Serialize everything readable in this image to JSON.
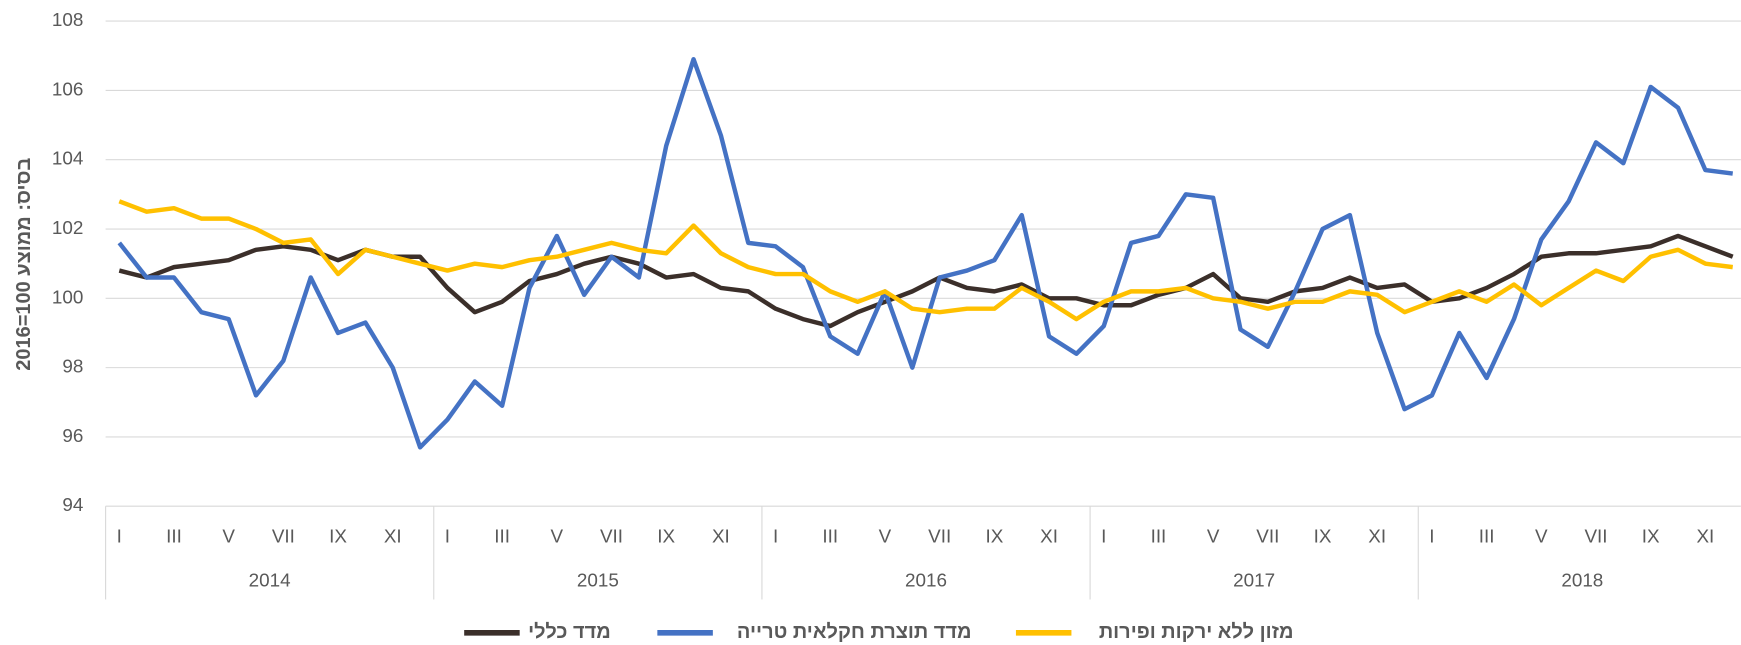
{
  "chart_data": {
    "type": "line",
    "y_label": "בסיס: ממוצע 100=2016",
    "categories": [
      "I",
      null,
      "III",
      null,
      "V",
      null,
      "VII",
      null,
      "IX",
      null,
      "XI",
      null,
      "I",
      null,
      "III",
      null,
      "V",
      null,
      "VII",
      null,
      "IX",
      null,
      "XI",
      null,
      "I",
      null,
      "III",
      null,
      "V",
      null,
      "VII",
      null,
      "IX",
      null,
      "XI",
      null,
      "I",
      null,
      "III",
      null,
      "V",
      null,
      "VII",
      null,
      "IX",
      null,
      "XI",
      null,
      "I",
      null,
      "III",
      null,
      "V",
      null,
      "VII",
      null,
      "IX",
      null,
      "XI",
      null
    ],
    "groups": [
      "2014",
      "2015",
      "2016",
      "2017",
      "2018"
    ],
    "series": [
      {
        "name": "מדד כללי",
        "color": "#3b2f2a",
        "values": [
          100.8,
          100.6,
          100.9,
          101.0,
          101.1,
          101.4,
          101.5,
          101.4,
          101.1,
          101.4,
          101.2,
          101.2,
          100.3,
          99.6,
          99.9,
          100.5,
          100.7,
          101.0,
          101.2,
          101.0,
          100.6,
          100.7,
          100.3,
          100.2,
          99.7,
          99.4,
          99.2,
          99.6,
          99.9,
          100.2,
          100.6,
          100.3,
          100.2,
          100.4,
          100.0,
          100.0,
          99.8,
          99.8,
          100.1,
          100.3,
          100.7,
          100.0,
          99.9,
          100.2,
          100.3,
          100.6,
          100.3,
          100.4,
          99.9,
          100.0,
          100.3,
          100.7,
          101.2,
          101.3,
          101.3,
          101.4,
          101.5,
          101.8,
          101.5,
          101.2
        ]
      },
      {
        "name": "מדד תוצרת חקלאית טרייה",
        "color": "#4472c4",
        "values": [
          101.6,
          100.6,
          100.6,
          99.6,
          99.4,
          97.2,
          98.2,
          100.6,
          99.0,
          99.3,
          98.0,
          95.7,
          96.5,
          97.6,
          96.9,
          100.3,
          101.8,
          100.1,
          101.2,
          100.6,
          104.4,
          106.9,
          104.7,
          101.6,
          101.5,
          100.9,
          98.9,
          98.4,
          100.2,
          98.0,
          100.6,
          100.8,
          101.1,
          102.4,
          98.9,
          98.4,
          99.2,
          101.6,
          101.8,
          103.0,
          102.9,
          99.1,
          98.6,
          100.2,
          102.0,
          102.4,
          99.0,
          96.8,
          97.2,
          99.0,
          97.7,
          99.4,
          101.7,
          102.8,
          104.5,
          103.9,
          106.1,
          105.5,
          103.7,
          103.6
        ]
      },
      {
        "name": "מזון ללא ירקות ופירות",
        "color": "#ffc000",
        "values": [
          102.8,
          102.5,
          102.6,
          102.3,
          102.3,
          102.0,
          101.6,
          101.7,
          100.7,
          101.4,
          101.2,
          101.0,
          100.8,
          101.0,
          100.9,
          101.1,
          101.2,
          101.4,
          101.6,
          101.4,
          101.3,
          102.1,
          101.3,
          100.9,
          100.7,
          100.7,
          100.2,
          99.9,
          100.2,
          99.7,
          99.6,
          99.7,
          99.7,
          100.3,
          99.9,
          99.4,
          99.9,
          100.2,
          100.2,
          100.3,
          100.0,
          99.9,
          99.7,
          99.9,
          99.9,
          100.2,
          100.1,
          99.6,
          99.9,
          100.2,
          99.9,
          100.4,
          99.8,
          100.3,
          100.8,
          100.5,
          101.2,
          101.4,
          101.0,
          100.9
        ]
      }
    ],
    "ylim": [
      94,
      108
    ],
    "yticks": [
      94,
      96,
      98,
      100,
      102,
      104,
      106,
      108
    ],
    "grid": true,
    "legend": "bottom"
  }
}
